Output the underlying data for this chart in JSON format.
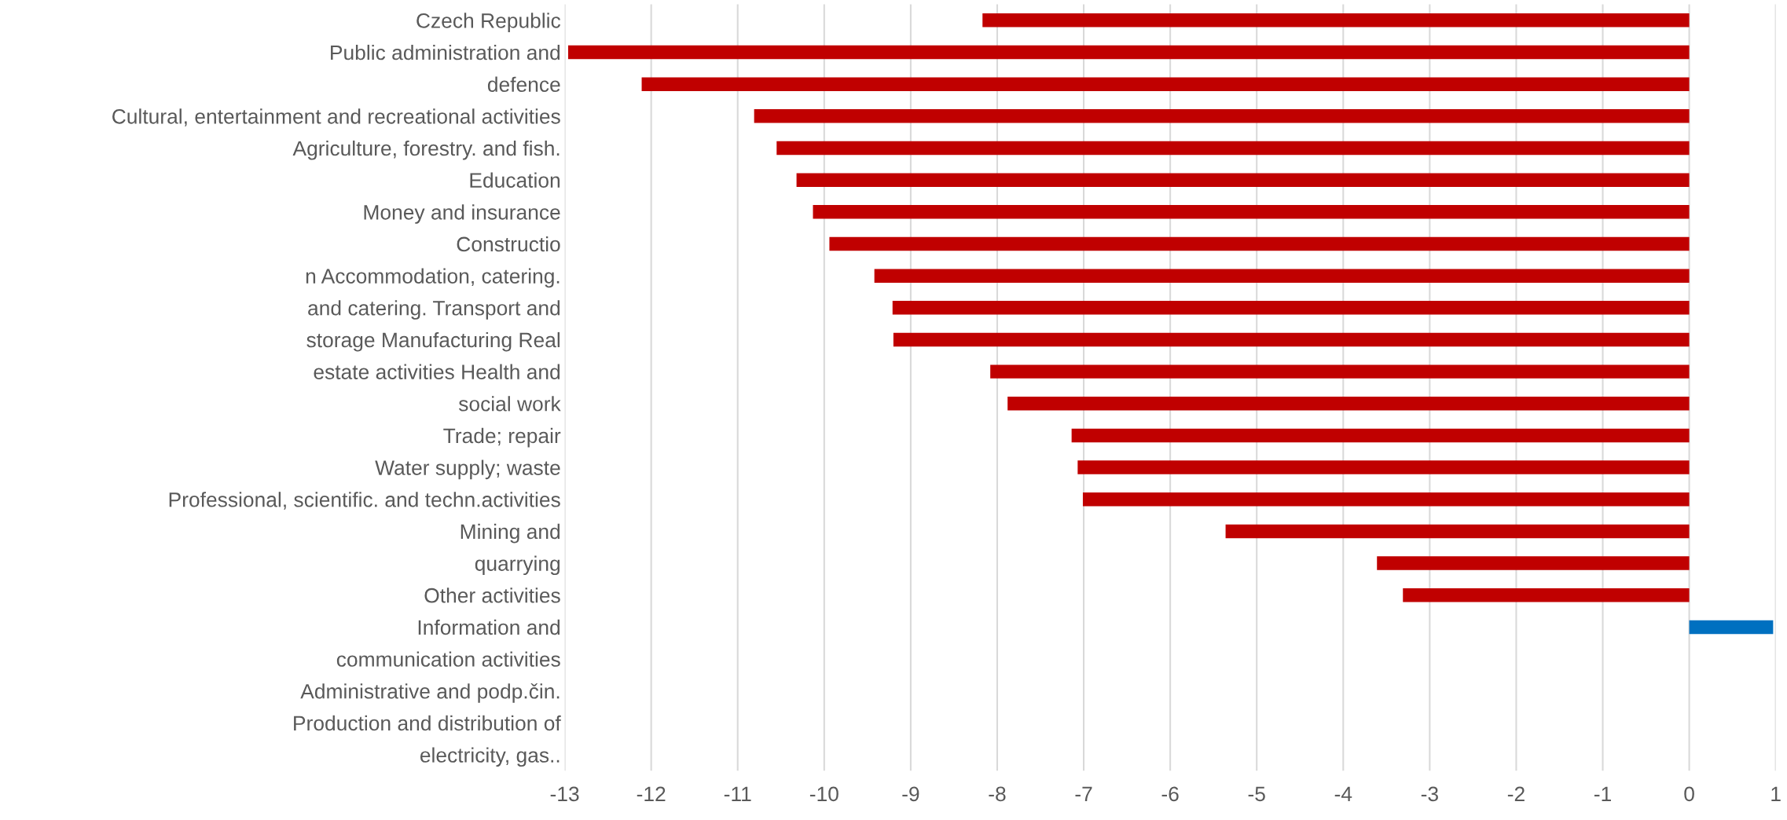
{
  "chart_data": {
    "type": "bar",
    "orientation": "horizontal",
    "categories": [
      "Czech Republic",
      "Public administration and",
      "defence",
      "Cultural, entertainment and recreational activities",
      "Agriculture, forestry. and fish.",
      "Education",
      "Money and insurance",
      "Constructio",
      "n Accommodation, catering.",
      "and catering. Transport and",
      "storage Manufacturing Real",
      "estate activities Health and",
      "social work",
      "Trade; repair",
      "Water supply; waste",
      "Professional, scientific. and techn.activities",
      "Mining and",
      "quarrying",
      "Other activities",
      "Information and",
      "communication activities",
      "Administrative and podp.čin.",
      "Production and distribution of",
      "electricity, gas.."
    ],
    "values": [
      -8.17,
      -12.96,
      -12.11,
      -10.81,
      -10.55,
      -10.32,
      -10.13,
      -9.94,
      -9.42,
      -9.21,
      -9.2,
      -8.08,
      -7.88,
      -7.14,
      -7.07,
      -7.01,
      -5.36,
      -3.61,
      -3.31,
      0.97,
      null,
      null,
      null,
      null
    ],
    "colors": [
      "#c00000",
      "#c00000",
      "#c00000",
      "#c00000",
      "#c00000",
      "#c00000",
      "#c00000",
      "#c00000",
      "#c00000",
      "#c00000",
      "#c00000",
      "#c00000",
      "#c00000",
      "#c00000",
      "#c00000",
      "#c00000",
      "#c00000",
      "#c00000",
      "#c00000",
      "#0070c0",
      null,
      null,
      null,
      null
    ],
    "xlim": [
      -13,
      1
    ],
    "xticks": [
      -13,
      -12,
      -11,
      -10,
      -9,
      -8,
      -7,
      -6,
      -5,
      -4,
      -3,
      -2,
      -1,
      0,
      1
    ],
    "grid": "x"
  }
}
